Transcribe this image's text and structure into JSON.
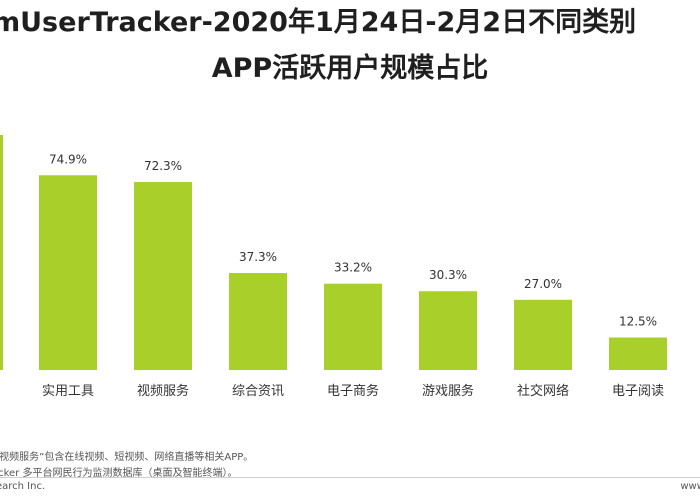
{
  "title": {
    "line1": "mUserTracker-2020年1月24日-2月2日不同类别",
    "line2": "APP活跃用户规模占比"
  },
  "colors": {
    "bar": "#a8cf2a",
    "first_bar": "#a8cf2a"
  },
  "chart_data": {
    "type": "bar",
    "categories": [
      "实用工具",
      "视频服务",
      "综合资讯",
      "电子商务",
      "游戏服务",
      "社交网络",
      "电子阅读"
    ],
    "values": [
      74.9,
      72.3,
      37.3,
      33.2,
      30.3,
      27.0,
      12.5
    ],
    "labels": [
      "74.9%",
      "72.3%",
      "37.3%",
      "33.2%",
      "30.3%",
      "27.0%",
      "12.5%"
    ],
    "ylim": [
      0,
      100
    ],
    "grid": false
  },
  "footer": {
    "note": "“视频服务”包含在线视频、短视频、网络直播等相关APP。",
    "source": "acker 多平台网民行为监测数据库（桌面及智能终端）。",
    "company": "earch Inc.",
    "site": "www.ire"
  }
}
